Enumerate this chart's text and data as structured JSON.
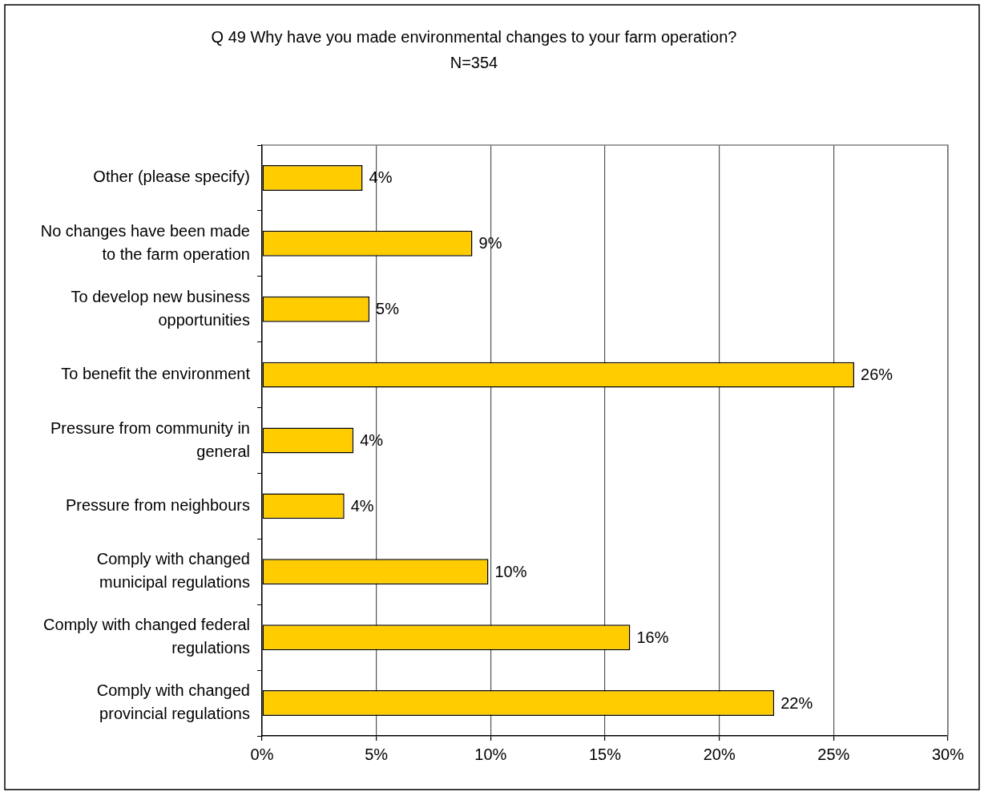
{
  "chart_data": {
    "type": "bar",
    "orientation": "horizontal",
    "title": "Q 49 Why have you made environmental changes to your farm operation?",
    "subtitle": "N=354",
    "categories": [
      "Other (please specify)",
      "No changes have been made to the farm operation",
      "To develop new business opportunities",
      "To benefit the environment",
      "Pressure from community in general",
      "Pressure from neighbours",
      "Comply with changed municipal regulations",
      "Comply with changed federal regulations",
      "Comply with changed provincial regulations"
    ],
    "values": [
      4.4,
      9.2,
      4.7,
      25.9,
      4.0,
      3.6,
      9.9,
      16.1,
      22.4
    ],
    "value_labels": [
      "4%",
      "9%",
      "5%",
      "26%",
      "4%",
      "4%",
      "10%",
      "16%",
      "22%"
    ],
    "color": "#ffcc00",
    "xlim": [
      0,
      30
    ],
    "xticks": [
      {
        "value": 0,
        "label": "0%"
      },
      {
        "value": 5,
        "label": "5%"
      },
      {
        "value": 10,
        "label": "10%"
      },
      {
        "value": 15,
        "label": "15%"
      },
      {
        "value": 20,
        "label": "20%"
      },
      {
        "value": 25,
        "label": "25%"
      },
      {
        "value": 30,
        "label": "30%"
      }
    ],
    "grid": "x"
  }
}
